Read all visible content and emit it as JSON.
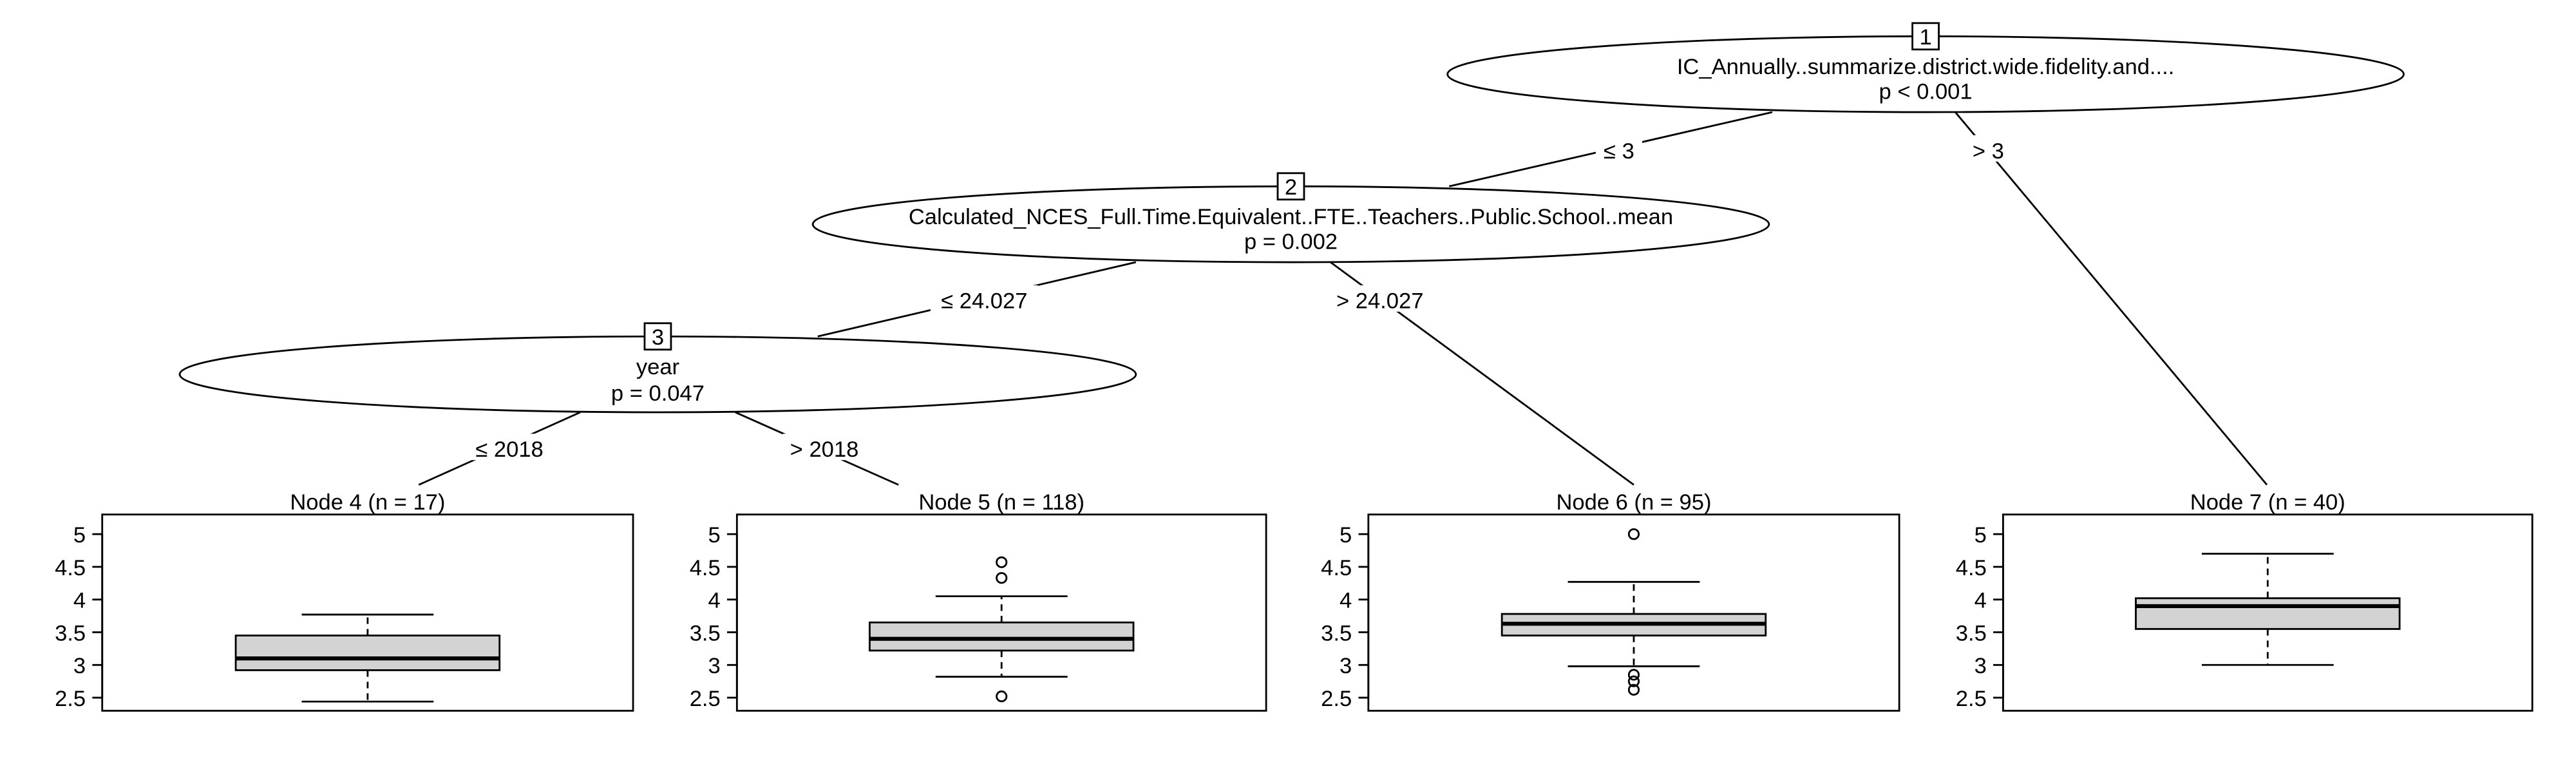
{
  "inner_nodes": [
    {
      "id": "1",
      "label": "IC_Annually..summarize.district.wide.fidelity.and....",
      "pvalue": "p < 0.001"
    },
    {
      "id": "2",
      "label": "Calculated_NCES_Full.Time.Equivalent..FTE..Teachers..Public.School..mean",
      "pvalue": "p = 0.002"
    },
    {
      "id": "3",
      "label": "year",
      "pvalue": "p = 0.047"
    }
  ],
  "edges": [
    {
      "from": "1",
      "to": "2",
      "label": "≤ 3"
    },
    {
      "from": "1",
      "to": "7",
      "label": "> 3"
    },
    {
      "from": "2",
      "to": "3",
      "label": "≤ 24.027"
    },
    {
      "from": "2",
      "to": "6",
      "label": "> 24.027"
    },
    {
      "from": "3",
      "to": "4",
      "label": "≤ 2018"
    },
    {
      "from": "3",
      "to": "5",
      "label": "> 2018"
    }
  ],
  "terminal_nodes": [
    {
      "id": "4",
      "title": "Node 4 (n = 17)",
      "box": {
        "whisker_low": 2.44,
        "q1": 2.92,
        "median": 3.1,
        "q3": 3.45,
        "whisker_high": 3.77,
        "outliers": []
      }
    },
    {
      "id": "5",
      "title": "Node 5 (n = 118)",
      "box": {
        "whisker_low": 2.82,
        "q1": 3.22,
        "median": 3.4,
        "q3": 3.65,
        "whisker_high": 4.05,
        "outliers": [
          4.33,
          4.57,
          2.52
        ]
      }
    },
    {
      "id": "6",
      "title": "Node 6 (n = 95)",
      "box": {
        "whisker_low": 2.98,
        "q1": 3.45,
        "median": 3.63,
        "q3": 3.78,
        "whisker_high": 4.27,
        "outliers": [
          5.0,
          2.85,
          2.75,
          2.62
        ]
      }
    },
    {
      "id": "7",
      "title": "Node 7 (n = 40)",
      "box": {
        "whisker_low": 3.0,
        "q1": 3.55,
        "median": 3.9,
        "q3": 4.02,
        "whisker_high": 4.7,
        "outliers": []
      }
    }
  ],
  "y_axis": {
    "ticks": [
      2.5,
      3,
      3.5,
      4,
      4.5,
      5
    ],
    "tick_labels": [
      "2.5",
      "3",
      "3.5",
      "4",
      "4.5",
      "5"
    ],
    "ylim": [
      2.3,
      5.3
    ]
  },
  "colors": {
    "box_fill": "#d3d3d3",
    "line": "#000000",
    "background": "#ffffff"
  }
}
